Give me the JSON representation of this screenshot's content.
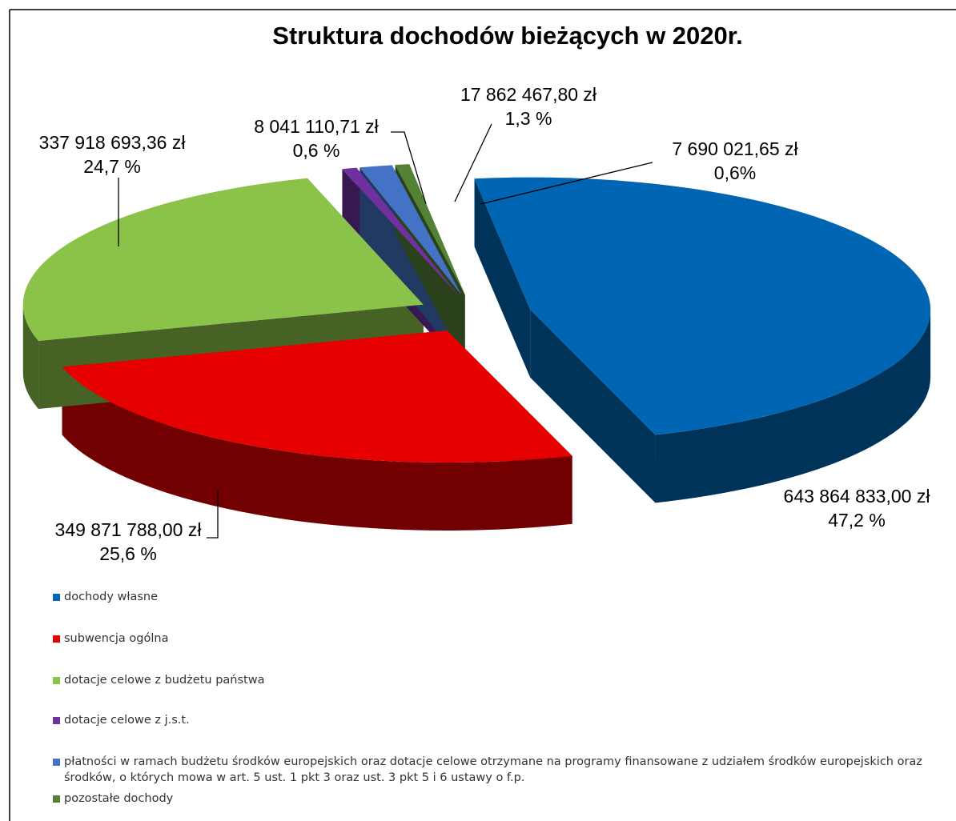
{
  "chart_data": {
    "type": "pie3d",
    "title": "Struktura dochodów bieżących w 2020r.",
    "categories": [
      "dochody własne",
      "subwencja ogólna",
      "dotacje celowe z budżetu państwa",
      "dotacje celowe z j.s.t.",
      "płatności w ramach budżetu środków europejskich oraz dotacje celowe otrzymane na programy finansowane z udziałem środków europejskich oraz środków, o których mowa w art. 5 ust. 1 pkt 3 oraz ust. 3 pkt 5 i 6 ustawy o f.p.",
      "pozostałe dochody"
    ],
    "values": [
      643864833.0,
      349871788.0,
      337918693.36,
      8041110.71,
      17862467.8,
      7690021.65
    ],
    "value_labels": [
      "643 864 833,00 zł",
      "349 871 788,00 zł",
      "337 918 693,36 zł",
      "8 041 110,71 zł",
      "17 862 467,80 zł",
      "7 690 021,65 zł"
    ],
    "percents": [
      47.2,
      25.6,
      24.7,
      0.6,
      1.3,
      0.6
    ],
    "percent_labels": [
      "47,2 %",
      "25,6 %",
      "24,7 %",
      "0,6 %",
      "1,3 %",
      "0,6%"
    ],
    "colors": [
      "#0066b3",
      "#e60000",
      "#8bc34a",
      "#7030a0",
      "#4472c4",
      "#548235"
    ]
  }
}
